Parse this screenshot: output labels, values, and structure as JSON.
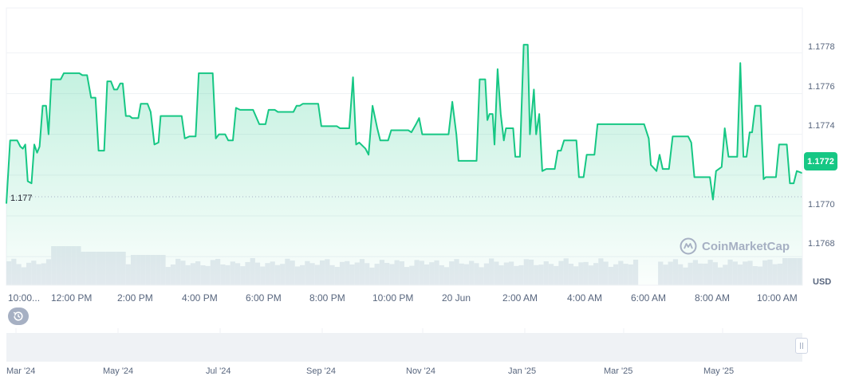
{
  "chart_data": {
    "type": "area",
    "yticks": [
      "1.1768",
      "1.1770",
      "1.1772",
      "1.1774",
      "1.1776",
      "1.1778"
    ],
    "ytick_values": [
      1.1768,
      1.177,
      1.1772,
      1.1774,
      1.1776,
      1.1778
    ],
    "ylim": [
      1.17666,
      1.17802
    ],
    "xticks": [
      "10:00...",
      "12:00 PM",
      "2:00 PM",
      "4:00 PM",
      "6:00 PM",
      "8:00 PM",
      "10:00 PM",
      "20 Jun",
      "2:00 AM",
      "4:00 AM",
      "6:00 AM",
      "8:00 AM",
      "10:00 AM"
    ],
    "xtick_positions": [
      0.0,
      2.0,
      4.0,
      6.0,
      8.0,
      10.0,
      12.0,
      14.0,
      16.0,
      18.0,
      20.0,
      22.0,
      24.0
    ],
    "x_unit": "hours",
    "xlim": [
      0.05,
      25.0
    ],
    "series": [
      {
        "values": [
          [
            0.05,
            1.17706
          ],
          [
            0.17,
            1.17737
          ],
          [
            0.4,
            1.17737
          ],
          [
            0.5,
            1.17734
          ],
          [
            0.58,
            1.17733
          ],
          [
            0.66,
            1.17735
          ],
          [
            0.74,
            1.17717
          ],
          [
            0.86,
            1.17716
          ],
          [
            0.95,
            1.17735
          ],
          [
            1.04,
            1.17731
          ],
          [
            1.12,
            1.17734
          ],
          [
            1.22,
            1.17754
          ],
          [
            1.33,
            1.17754
          ],
          [
            1.41,
            1.1774
          ],
          [
            1.5,
            1.17767
          ],
          [
            1.8,
            1.17767
          ],
          [
            1.9,
            1.1777
          ],
          [
            2.4,
            1.1777
          ],
          [
            2.5,
            1.17769
          ],
          [
            2.65,
            1.17769
          ],
          [
            2.78,
            1.17758
          ],
          [
            2.92,
            1.17758
          ],
          [
            3.02,
            1.17732
          ],
          [
            3.2,
            1.17732
          ],
          [
            3.3,
            1.17766
          ],
          [
            3.42,
            1.17766
          ],
          [
            3.52,
            1.17762
          ],
          [
            3.62,
            1.17762
          ],
          [
            3.72,
            1.17765
          ],
          [
            3.8,
            1.17765
          ],
          [
            3.9,
            1.17749
          ],
          [
            4.02,
            1.17749
          ],
          [
            4.1,
            1.17748
          ],
          [
            4.3,
            1.17748
          ],
          [
            4.38,
            1.17755
          ],
          [
            4.6,
            1.17755
          ],
          [
            4.7,
            1.17751
          ],
          [
            4.82,
            1.17735
          ],
          [
            4.95,
            1.17736
          ],
          [
            5.02,
            1.17749
          ],
          [
            5.7,
            1.17749
          ],
          [
            5.8,
            1.17738
          ],
          [
            5.95,
            1.17739
          ],
          [
            6.15,
            1.17739
          ],
          [
            6.25,
            1.1777
          ],
          [
            6.7,
            1.1777
          ],
          [
            6.8,
            1.17738
          ],
          [
            6.9,
            1.1774
          ],
          [
            7.1,
            1.1774
          ],
          [
            7.2,
            1.17737
          ],
          [
            7.35,
            1.17737
          ],
          [
            7.45,
            1.17753
          ],
          [
            7.58,
            1.17752
          ],
          [
            8.0,
            1.17752
          ],
          [
            8.2,
            1.17745
          ],
          [
            8.4,
            1.17745
          ],
          [
            8.5,
            1.17752
          ],
          [
            8.7,
            1.17752
          ],
          [
            8.8,
            1.17751
          ],
          [
            9.3,
            1.17751
          ],
          [
            9.4,
            1.17754
          ],
          [
            9.5,
            1.17754
          ],
          [
            9.6,
            1.17755
          ],
          [
            10.1,
            1.17755
          ],
          [
            10.2,
            1.17744
          ],
          [
            10.7,
            1.17744
          ],
          [
            10.8,
            1.17743
          ],
          [
            11.1,
            1.17743
          ],
          [
            11.22,
            1.17768
          ],
          [
            11.32,
            1.17735
          ],
          [
            11.42,
            1.17736
          ],
          [
            11.62,
            1.17733
          ],
          [
            11.72,
            1.1773
          ],
          [
            11.85,
            1.17754
          ],
          [
            12.0,
            1.17743
          ],
          [
            12.1,
            1.17737
          ],
          [
            12.35,
            1.17737
          ],
          [
            12.45,
            1.17742
          ],
          [
            13.0,
            1.17742
          ],
          [
            13.1,
            1.17741
          ],
          [
            13.25,
            1.17745
          ],
          [
            13.35,
            1.17748
          ],
          [
            13.45,
            1.1774
          ],
          [
            14.3,
            1.1774
          ],
          [
            14.42,
            1.17756
          ],
          [
            14.55,
            1.1774
          ],
          [
            14.62,
            1.17727
          ],
          [
            15.2,
            1.17727
          ],
          [
            15.3,
            1.17767
          ],
          [
            15.48,
            1.17767
          ],
          [
            15.55,
            1.17747
          ],
          [
            15.62,
            1.1775
          ],
          [
            15.72,
            1.1775
          ],
          [
            15.78,
            1.17735
          ],
          [
            15.88,
            1.17772
          ],
          [
            15.98,
            1.1775
          ],
          [
            16.08,
            1.17737
          ],
          [
            16.15,
            1.17743
          ],
          [
            16.38,
            1.17743
          ],
          [
            16.45,
            1.17729
          ],
          [
            16.6,
            1.17729
          ],
          [
            16.72,
            1.17784
          ],
          [
            16.85,
            1.17784
          ],
          [
            16.92,
            1.1774
          ],
          [
            17.05,
            1.17762
          ],
          [
            17.12,
            1.1774
          ],
          [
            17.22,
            1.1775
          ],
          [
            17.32,
            1.17722
          ],
          [
            17.45,
            1.17723
          ],
          [
            17.72,
            1.17723
          ],
          [
            17.82,
            1.17732
          ],
          [
            17.92,
            1.17732
          ],
          [
            18.02,
            1.17737
          ],
          [
            18.42,
            1.17737
          ],
          [
            18.5,
            1.17719
          ],
          [
            18.65,
            1.17719
          ],
          [
            18.75,
            1.1773
          ],
          [
            19.0,
            1.1773
          ],
          [
            19.1,
            1.17745
          ],
          [
            20.6,
            1.17745
          ],
          [
            20.75,
            1.17738
          ],
          [
            20.82,
            1.17725
          ],
          [
            21.0,
            1.17722
          ],
          [
            21.1,
            1.1773
          ],
          [
            21.2,
            1.17723
          ],
          [
            21.4,
            1.17723
          ],
          [
            21.52,
            1.17739
          ],
          [
            22.02,
            1.17739
          ],
          [
            22.12,
            1.17736
          ],
          [
            22.22,
            1.17719
          ],
          [
            22.72,
            1.17719
          ],
          [
            22.82,
            1.17708
          ],
          [
            22.92,
            1.17722
          ],
          [
            23.1,
            1.17724
          ],
          [
            23.2,
            1.17743
          ],
          [
            23.32,
            1.17729
          ],
          [
            23.6,
            1.17729
          ],
          [
            23.7,
            1.17775
          ],
          [
            23.8,
            1.17729
          ],
          [
            23.9,
            1.17729
          ],
          [
            24.0,
            1.17741
          ],
          [
            24.08,
            1.17741
          ],
          [
            24.18,
            1.17754
          ],
          [
            24.35,
            1.17754
          ],
          [
            24.45,
            1.17718
          ],
          [
            24.52,
            1.17719
          ],
          [
            24.85,
            1.17719
          ],
          [
            24.95,
            1.17735
          ],
          [
            25.2,
            1.17735
          ],
          [
            25.3,
            1.17716
          ],
          [
            25.42,
            1.17716
          ],
          [
            25.52,
            1.17722
          ],
          [
            25.7,
            1.17721
          ]
        ]
      }
    ],
    "current_value": "1.1772",
    "min_label": "1.177",
    "unit": "USD",
    "grid": true,
    "line_color": "#16c784",
    "volume_color": "#e6eaf0"
  },
  "watermark": "CoinMarketCap",
  "navigator": {
    "labels": [
      "Mar '24",
      "May '24",
      "Jul '24",
      "Sep '24",
      "Nov '24",
      "Jan '25",
      "Mar '25",
      "May '25"
    ]
  },
  "icons": {
    "history": "history-icon",
    "watermark_logo": "coinmarketcap-logo-icon",
    "handle": "drag-handle-icon"
  }
}
